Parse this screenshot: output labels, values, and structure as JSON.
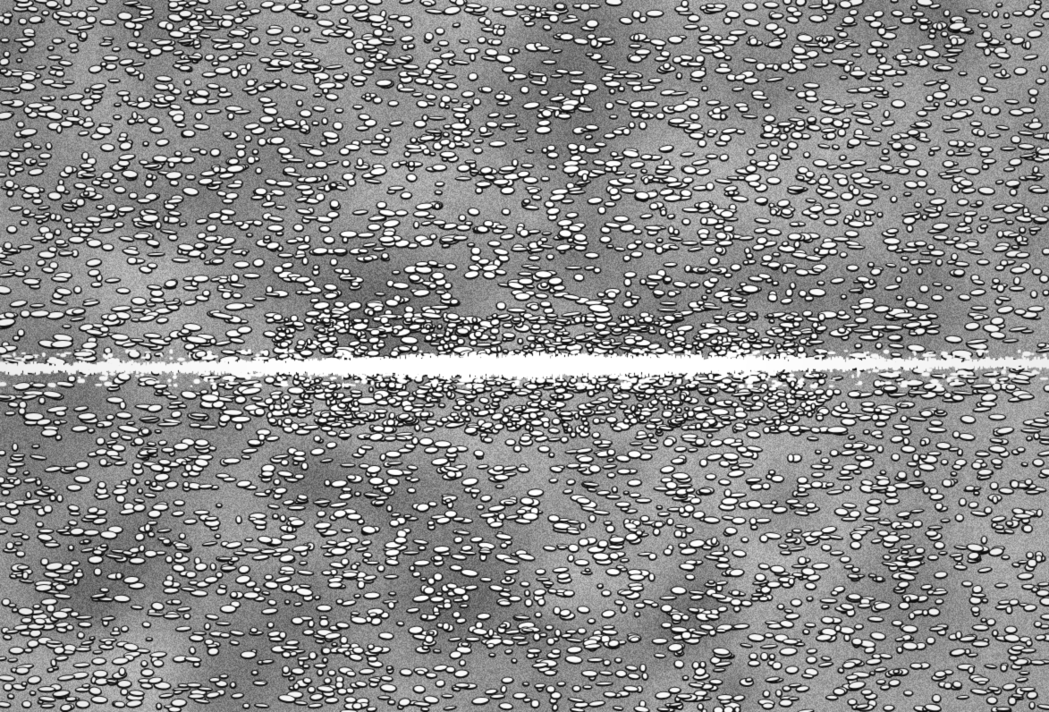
{
  "image": {
    "kind": "grayscale-micrograph",
    "palette": {
      "background": "#ffffff",
      "matrix_light": "#a8a8a8",
      "matrix_dark": "#4a4a4a",
      "particle": "#ffffff",
      "particle_edge": "#101010"
    }
  }
}
